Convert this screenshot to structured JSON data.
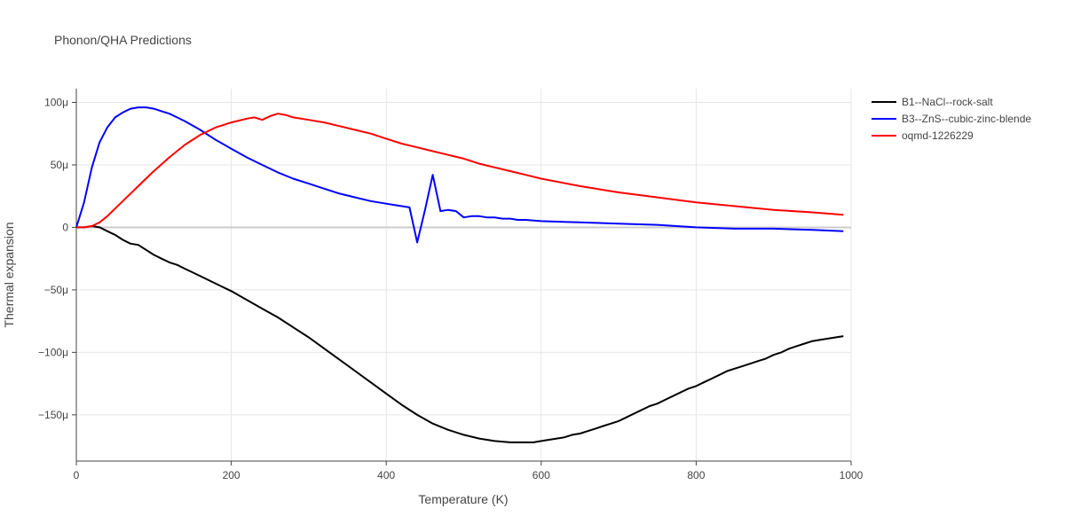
{
  "chart_data": {
    "type": "line",
    "title": "Phonon/QHA Predictions",
    "xlabel": "Temperature (K)",
    "ylabel": "Thermal expansion",
    "xlim": [
      0,
      1000
    ],
    "ylim": [
      -187,
      111
    ],
    "x_ticks": [
      0,
      200,
      400,
      600,
      800,
      1000
    ],
    "x_tick_labels": [
      "0",
      "200",
      "400",
      "600",
      "800",
      "1000"
    ],
    "y_ticks": [
      100,
      50,
      0,
      -50,
      -100,
      -150
    ],
    "y_tick_labels": [
      "100μ",
      "50μ",
      "0",
      "−50μ",
      "−100μ",
      "−150μ"
    ],
    "grid": true,
    "legend_position": "top-right",
    "series": [
      {
        "name": "B1--NaCl--rock-salt",
        "color": "#000000",
        "x": [
          0,
          10,
          20,
          30,
          40,
          50,
          60,
          70,
          80,
          90,
          100,
          110,
          120,
          130,
          140,
          160,
          180,
          200,
          220,
          240,
          260,
          280,
          300,
          320,
          340,
          360,
          380,
          400,
          420,
          440,
          460,
          480,
          500,
          520,
          540,
          560,
          570,
          580,
          590,
          600,
          610,
          620,
          630,
          640,
          650,
          660,
          670,
          680,
          690,
          700,
          710,
          720,
          730,
          740,
          750,
          760,
          770,
          780,
          790,
          800,
          810,
          820,
          830,
          840,
          850,
          860,
          870,
          880,
          890,
          900,
          910,
          920,
          930,
          940,
          950,
          960,
          970,
          980,
          990
        ],
        "y": [
          0,
          0,
          1,
          0,
          -3,
          -6,
          -10,
          -13,
          -14,
          -18,
          -22,
          -25,
          -28,
          -30,
          -33,
          -39,
          -45,
          -51,
          -58,
          -65,
          -72,
          -80,
          -88,
          -97,
          -106,
          -115,
          -124,
          -133,
          -142,
          -150,
          -157,
          -162,
          -166,
          -169,
          -171,
          -172,
          -172,
          -172,
          -172,
          -171,
          -170,
          -169,
          -168,
          -166,
          -165,
          -163,
          -161,
          -159,
          -157,
          -155,
          -152,
          -149,
          -146,
          -143,
          -141,
          -138,
          -135,
          -132,
          -129,
          -127,
          -124,
          -121,
          -118,
          -115,
          -113,
          -111,
          -109,
          -107,
          -105,
          -102,
          -100,
          -97,
          -95,
          -93,
          -91,
          -90,
          -89,
          -88,
          -87
        ]
      },
      {
        "name": "B3--ZnS--cubic-zinc-blende",
        "color": "#0000ff",
        "x": [
          0,
          10,
          20,
          30,
          40,
          50,
          60,
          70,
          80,
          90,
          100,
          110,
          120,
          130,
          140,
          160,
          180,
          200,
          220,
          240,
          260,
          280,
          300,
          320,
          340,
          360,
          380,
          400,
          410,
          420,
          430,
          440,
          450,
          460,
          470,
          480,
          490,
          500,
          510,
          520,
          530,
          540,
          550,
          560,
          570,
          580,
          600,
          650,
          700,
          750,
          800,
          850,
          900,
          950,
          990
        ],
        "y": [
          0,
          20,
          48,
          68,
          80,
          88,
          92,
          95,
          96,
          96,
          95,
          93,
          91,
          88,
          85,
          78,
          70,
          63,
          56,
          50,
          44,
          39,
          35,
          31,
          27,
          24,
          21,
          19,
          18,
          17,
          16,
          -12,
          14,
          42,
          13,
          14,
          13,
          8,
          9,
          9,
          8,
          8,
          7,
          7,
          6,
          6,
          5,
          4,
          3,
          2,
          0,
          -1,
          -1,
          -2,
          -3
        ]
      },
      {
        "name": "oqmd-1226229",
        "color": "#ff0000",
        "x": [
          0,
          10,
          20,
          30,
          40,
          60,
          80,
          100,
          120,
          140,
          160,
          180,
          200,
          220,
          230,
          240,
          250,
          260,
          270,
          280,
          300,
          320,
          340,
          360,
          380,
          400,
          420,
          440,
          460,
          480,
          500,
          520,
          540,
          560,
          580,
          600,
          650,
          700,
          750,
          800,
          850,
          900,
          950,
          990
        ],
        "y": [
          0,
          0,
          1,
          4,
          9,
          21,
          33,
          45,
          56,
          66,
          74,
          80,
          84,
          87,
          88,
          86,
          89,
          91,
          90,
          88,
          86,
          84,
          81,
          78,
          75,
          71,
          67,
          64,
          61,
          58,
          55,
          51,
          48,
          45,
          42,
          39,
          33,
          28,
          24,
          20,
          17,
          14,
          12,
          10
        ]
      }
    ]
  }
}
